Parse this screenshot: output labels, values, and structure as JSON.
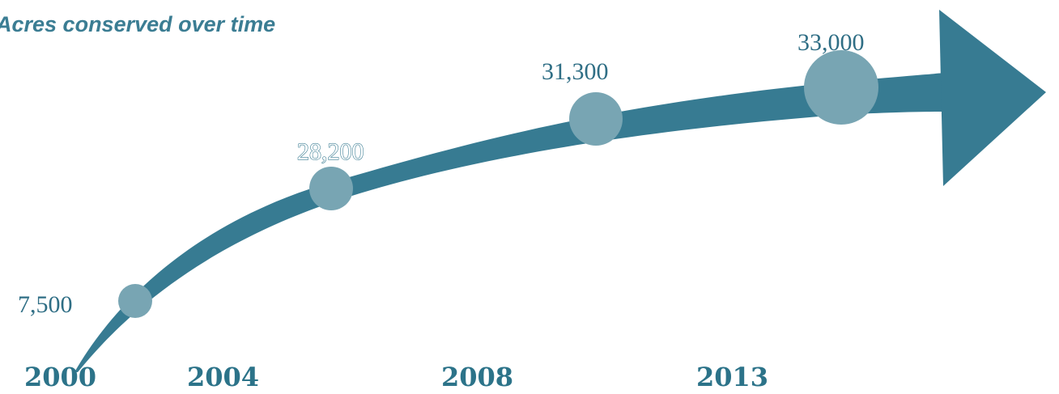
{
  "chart_data": {
    "type": "line",
    "title": "Acres conserved over time",
    "x_labels": [
      "2000",
      "2004",
      "2008",
      "2013"
    ],
    "points": [
      {
        "label": "7,500",
        "value": 7500
      },
      {
        "label": "28,200",
        "value": 28200
      },
      {
        "label": "31,300",
        "value": 31300
      },
      {
        "label": "33,000",
        "value": 33000
      }
    ],
    "colors": {
      "arrow": "#377b92",
      "marker": "#78a5b3",
      "title": "#3b7d93",
      "year": "#2c7389"
    }
  }
}
